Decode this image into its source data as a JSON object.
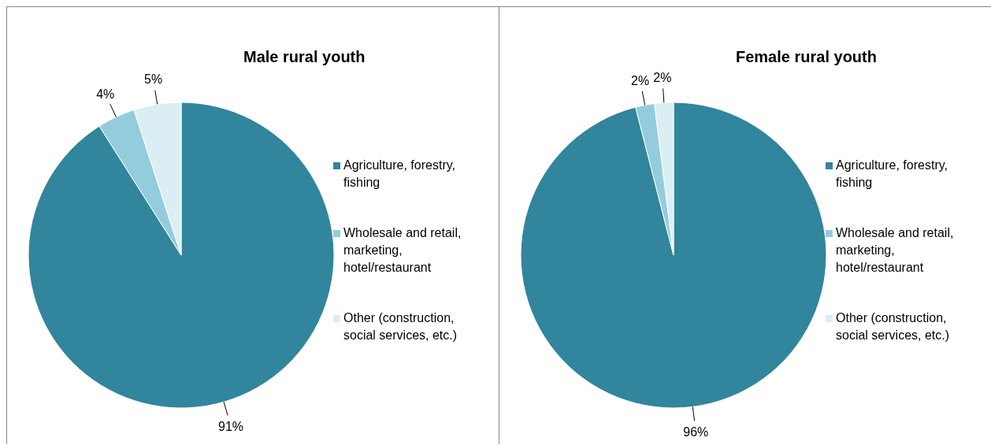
{
  "chart_data": [
    {
      "type": "pie",
      "title": "Male rural youth",
      "categories": [
        "Agriculture, forestry, fishing",
        "Wholesale and retail, marketing, hotel/restaurant",
        "Other (construction, social services, etc.)"
      ],
      "values": [
        91,
        4,
        5
      ],
      "value_labels": [
        "91%",
        "4%",
        "5%"
      ],
      "colors": [
        "#31859c",
        "#93cddd",
        "#dbeef4"
      ],
      "legend": "right"
    },
    {
      "type": "pie",
      "title": "Female rural youth",
      "categories": [
        "Agriculture, forestry, fishing",
        "Wholesale and retail, marketing, hotel/restaurant",
        "Other (construction, social services, etc.)"
      ],
      "values": [
        96,
        2,
        2
      ],
      "value_labels": [
        "96%",
        "2%",
        "2%"
      ],
      "colors": [
        "#31859c",
        "#93cddd",
        "#dbeef4"
      ],
      "legend": "right"
    }
  ]
}
